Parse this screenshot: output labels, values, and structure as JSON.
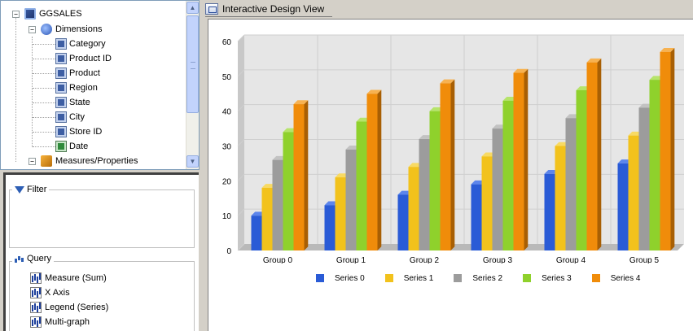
{
  "tree": {
    "root_label": "GGSALES",
    "dimensions_label": "Dimensions",
    "dimension_fields": [
      "Category",
      "Product ID",
      "Product",
      "Region",
      "State",
      "City",
      "Store ID",
      "Date"
    ],
    "measures_label": "Measures/Properties",
    "toggle_symbol": "−"
  },
  "filter": {
    "title": "Filter"
  },
  "query": {
    "title": "Query",
    "items": [
      "Measure (Sum)",
      "X Axis",
      "Legend (Series)",
      "Multi-graph"
    ]
  },
  "view": {
    "title": "Interactive Design View"
  },
  "colors": {
    "series": [
      "#2a5bd6",
      "#f2c21c",
      "#9c9c9c",
      "#8fd12c",
      "#f08c0a"
    ],
    "series_side": [
      "#1a3a8c",
      "#b8900e",
      "#6b6b6b",
      "#5d8f16",
      "#a85f04"
    ],
    "series_top": [
      "#5c85ec",
      "#f8da63",
      "#c2c2c2",
      "#b6e46a",
      "#f7b251"
    ]
  },
  "chart_data": {
    "type": "bar",
    "categories": [
      "Group 0",
      "Group 1",
      "Group 2",
      "Group 3",
      "Group 4",
      "Group 5"
    ],
    "series": [
      {
        "name": "Series 0",
        "values": [
          10,
          13,
          16,
          19,
          22,
          25
        ]
      },
      {
        "name": "Series 1",
        "values": [
          18,
          21,
          24,
          27,
          30,
          33
        ]
      },
      {
        "name": "Series 2",
        "values": [
          26,
          29,
          32,
          35,
          38,
          41
        ]
      },
      {
        "name": "Series 3",
        "values": [
          34,
          37,
          40,
          43,
          46,
          49
        ]
      },
      {
        "name": "Series 4",
        "values": [
          42,
          45,
          48,
          51,
          54,
          57
        ]
      }
    ],
    "ylim": [
      0,
      60
    ],
    "yticks": [
      "0",
      "10",
      "20",
      "30",
      "40",
      "50",
      "60"
    ],
    "grid": true,
    "legend": "bottom",
    "style": "3d"
  }
}
